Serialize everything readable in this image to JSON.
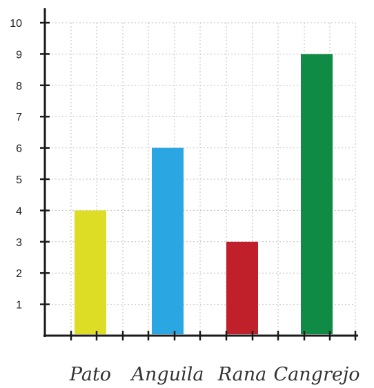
{
  "chart_data": {
    "type": "bar",
    "categories": [
      "Pato",
      "Anguila",
      "Rana",
      "Cangrejo"
    ],
    "values": [
      4,
      6,
      3,
      9
    ],
    "colors": [
      "#dedd26",
      "#2aa7e2",
      "#c0202a",
      "#0f8b45"
    ],
    "title": "",
    "xlabel": "",
    "ylabel": "",
    "ylim": [
      0,
      10
    ],
    "yticks": [
      1,
      2,
      3,
      4,
      5,
      6,
      7,
      8,
      9,
      10
    ],
    "ytick_labels": [
      "1",
      "2",
      "3",
      "4",
      "5",
      "6",
      "7",
      "8",
      "9",
      "10"
    ],
    "grid": true,
    "legend": "none"
  }
}
